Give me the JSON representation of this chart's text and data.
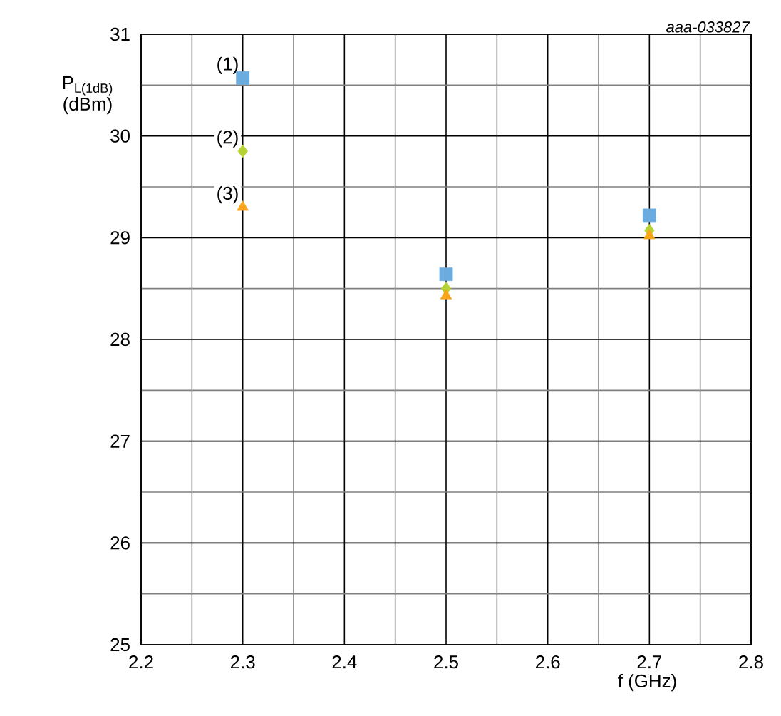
{
  "chart_data": {
    "type": "scatter",
    "xlabel": "f (GHz)",
    "ylabel": "P$_{L(1dB)}$ (dBm)",
    "x": [
      2.3,
      2.5,
      2.7
    ],
    "series": [
      {
        "name": "(1)",
        "color": "#6aacdf",
        "marker": "square",
        "values": [
          30.57,
          28.64,
          29.22
        ]
      },
      {
        "name": "(2)",
        "color": "#b5d334",
        "marker": "diamond",
        "values": [
          29.85,
          28.5,
          29.07
        ]
      },
      {
        "name": "(3)",
        "color": "#f9a51a",
        "marker": "triangle",
        "values": [
          29.3,
          28.43,
          29.02
        ]
      }
    ],
    "xlim": [
      2.2,
      2.8
    ],
    "ylim": [
      25,
      31
    ],
    "xticks": [
      2.2,
      2.3,
      2.4,
      2.5,
      2.6,
      2.7,
      2.8
    ],
    "yticks": [
      25,
      26,
      27,
      28,
      29,
      30,
      31
    ],
    "grid": true,
    "annotations": [
      "aaa-033827"
    ]
  }
}
